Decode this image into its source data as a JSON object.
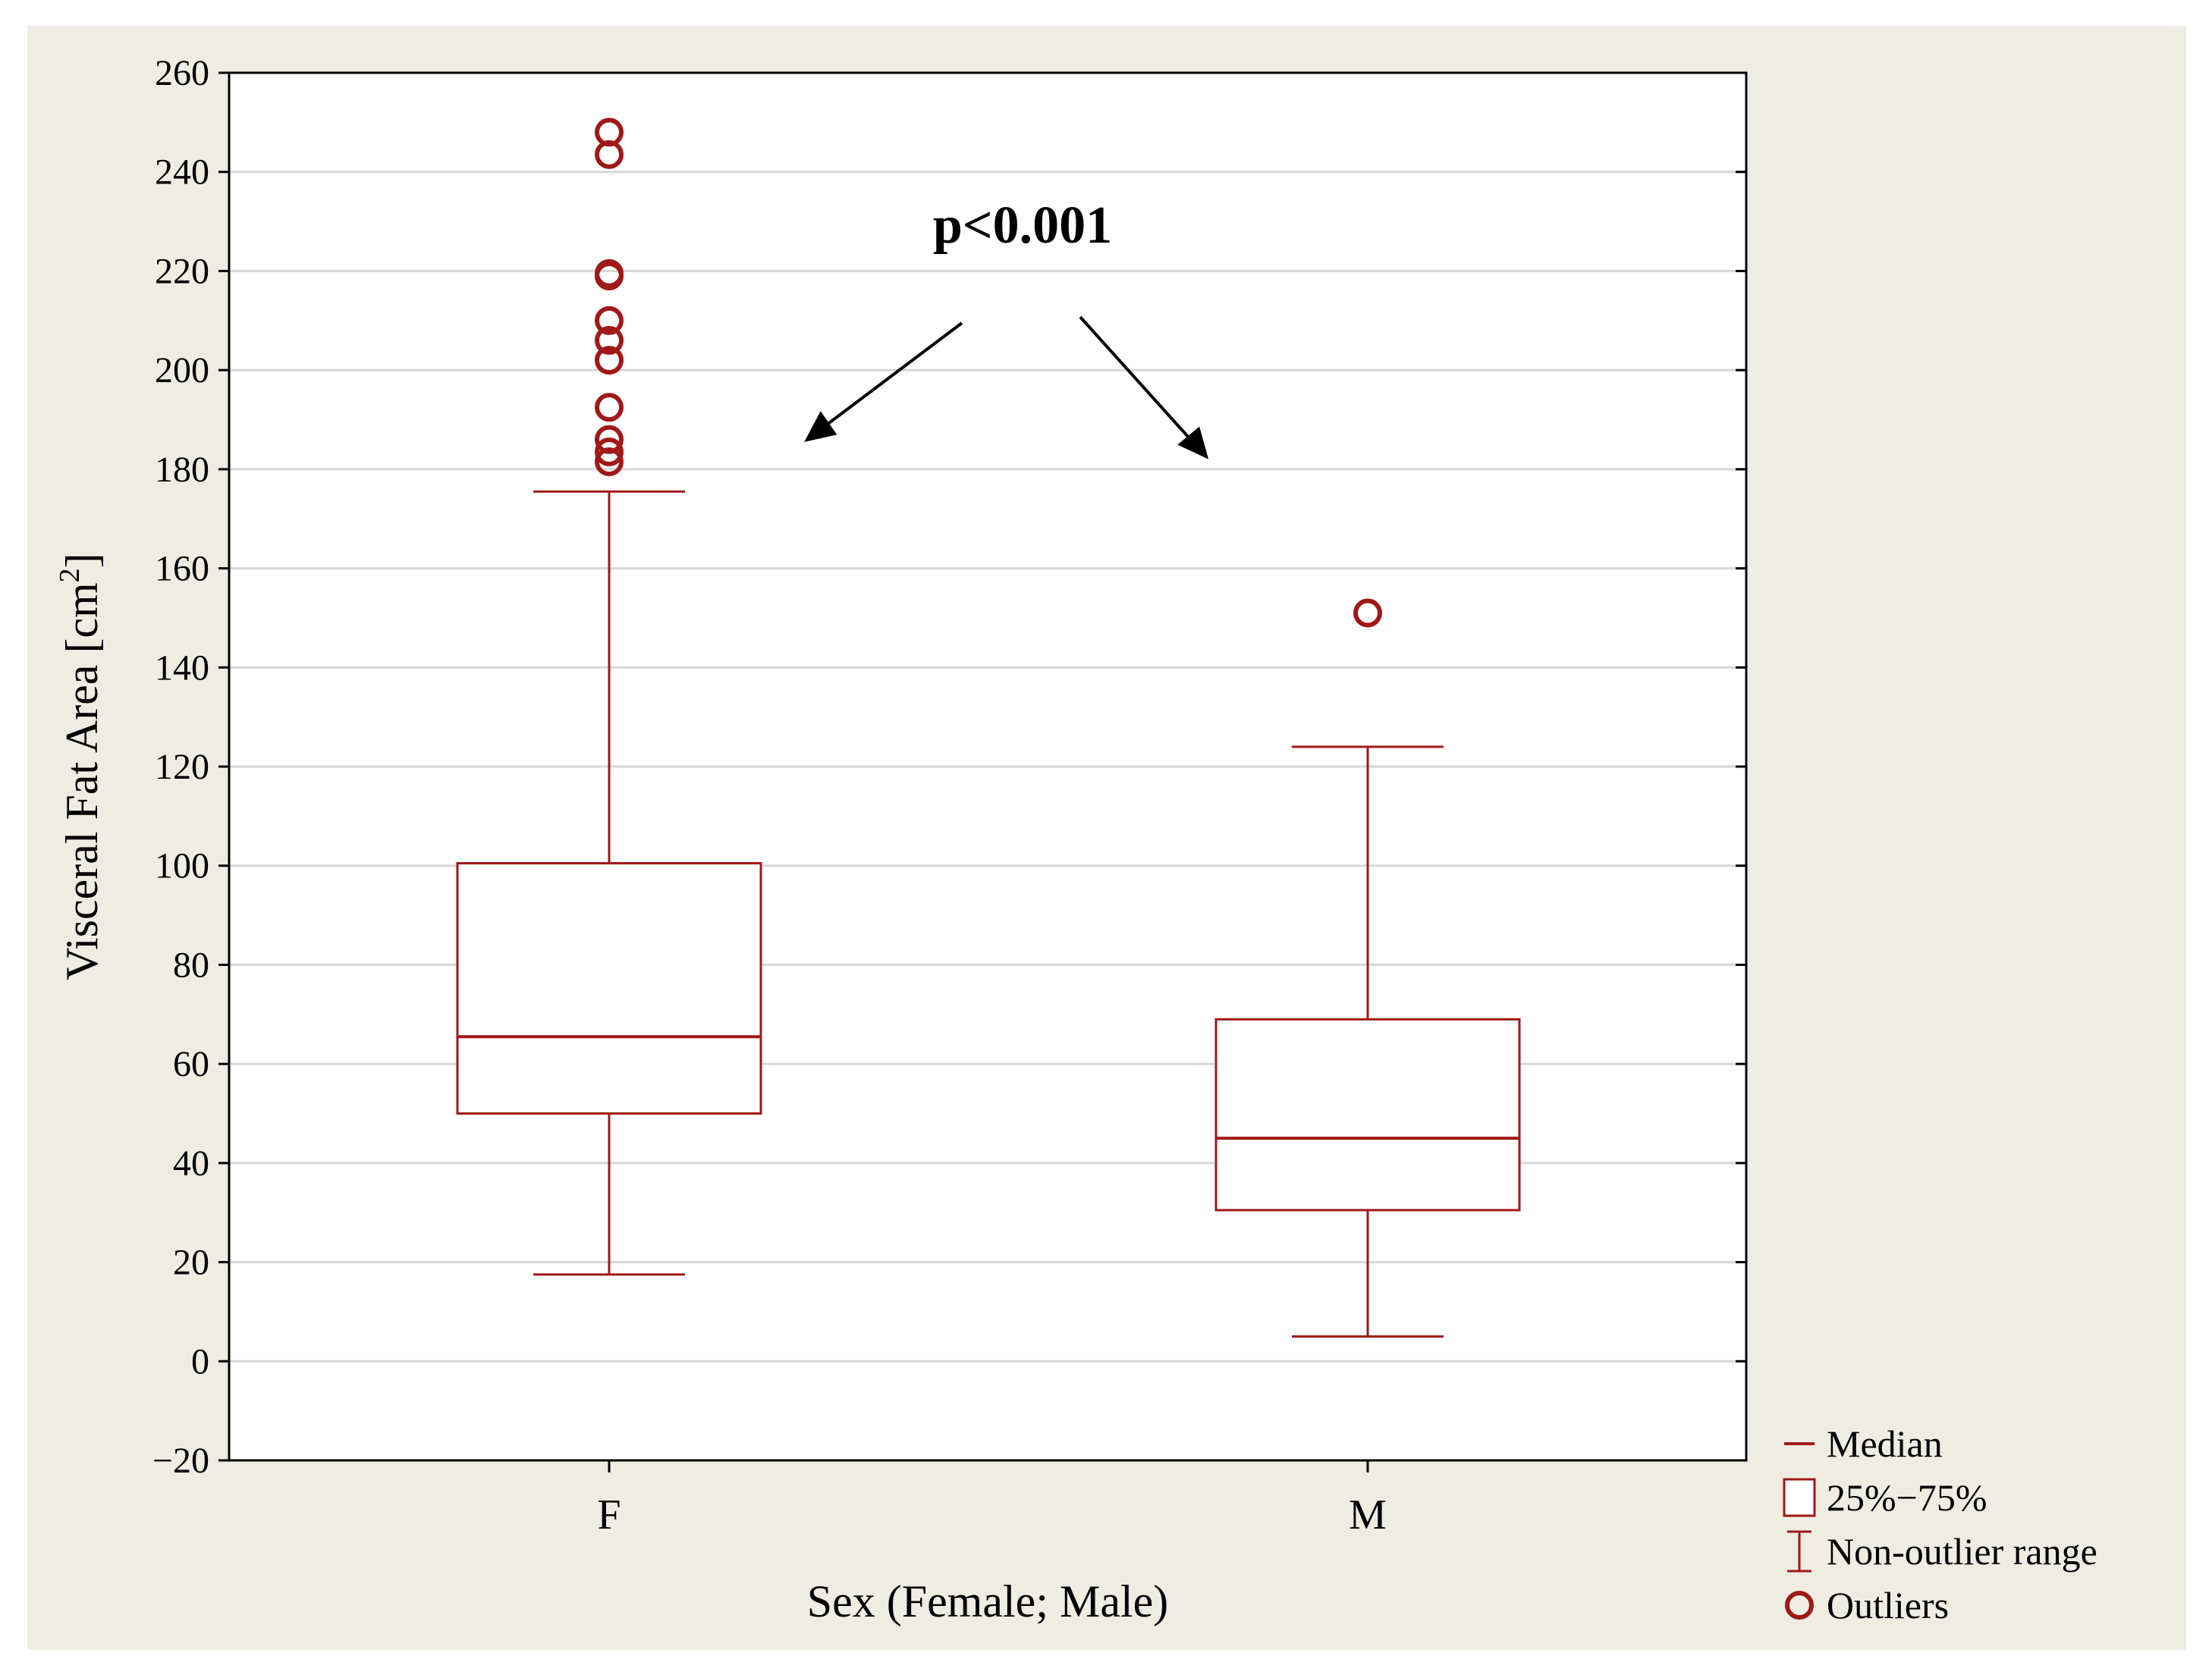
{
  "chart_data": {
    "type": "box",
    "title": "",
    "xlabel": "Sex (Female; Male)",
    "ylabel_main": "Visceral Fat Area [cm",
    "ylabel_sup": "2",
    "ylabel_end": "]",
    "ylim": [
      -20,
      260
    ],
    "yticks": [
      260,
      240,
      220,
      200,
      180,
      160,
      140,
      120,
      100,
      80,
      60,
      40,
      20,
      0,
      -20
    ],
    "ytick_labels": [
      "260",
      "240",
      "220",
      "200",
      "180",
      "160",
      "140",
      "120",
      "100",
      "80",
      "60",
      "40",
      "20",
      "0",
      "−20"
    ],
    "grid": true,
    "categories": [
      "F",
      "M"
    ],
    "boxes": [
      {
        "category": "F",
        "whisker_low": 17.5,
        "q1": 50,
        "median": 65.5,
        "q3": 100.5,
        "whisker_high": 175.5,
        "outliers": [
          248,
          243.5,
          219.5,
          219,
          210,
          206,
          202,
          192.5,
          186,
          183.5,
          181.5
        ]
      },
      {
        "category": "M",
        "whisker_low": 5,
        "q1": 30.5,
        "median": 45,
        "q3": 69,
        "whisker_high": 124,
        "outliers": [
          151
        ]
      }
    ],
    "annotation": "p<0.001",
    "legend": [
      "Median",
      "25%−75%",
      "Non-outlier range",
      "Outliers"
    ],
    "legend_position": "bottom-right outside",
    "colors": {
      "series": "#a01818",
      "grid": "#d7d7d7",
      "background": "#efece2",
      "plot_bg": "#ffffff",
      "axis": "#000000"
    }
  }
}
